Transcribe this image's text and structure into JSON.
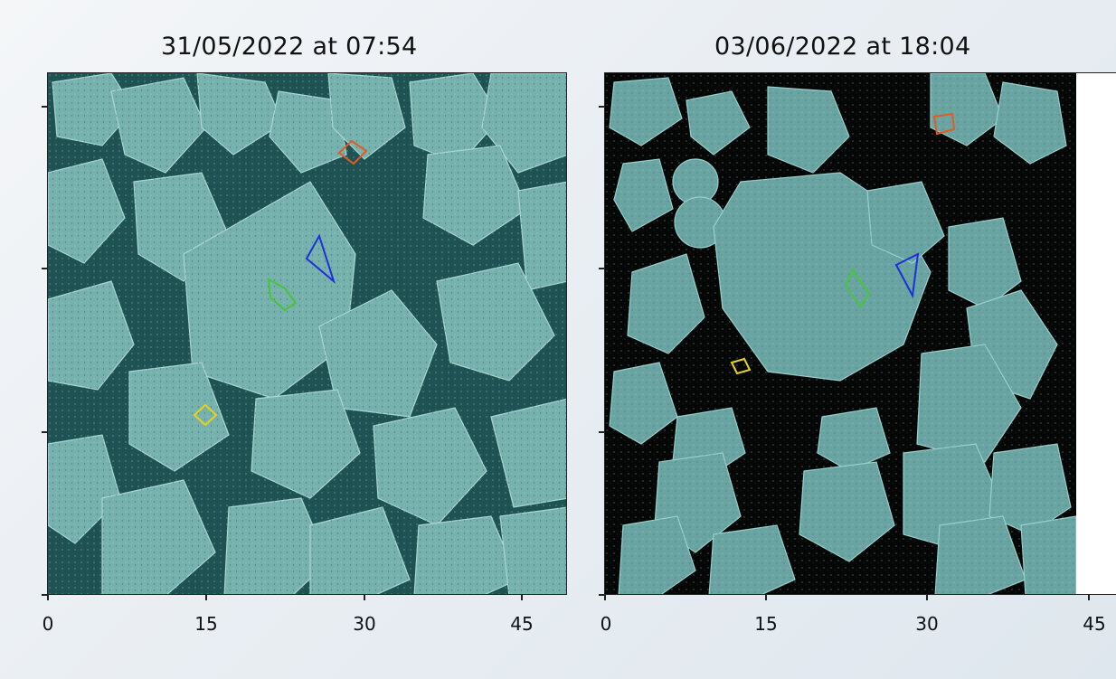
{
  "panels": [
    {
      "title": "31/05/2022 at 07:54",
      "xticks": [
        "0",
        "15",
        "30",
        "45"
      ],
      "water_color": "#1f5353",
      "ice_color": "#7fb8b6"
    },
    {
      "title": "03/06/2022 at 18:04",
      "xticks": [
        "0",
        "15",
        "30",
        "45"
      ],
      "water_color": "#050706",
      "ice_color": "#6fa9a7"
    }
  ],
  "markers": [
    {
      "shape": "diamond",
      "color": "#e35b1e",
      "icon": "orange-diamond-marker"
    },
    {
      "shape": "triangle",
      "color": "#1d2fd6",
      "icon": "blue-triangle-marker"
    },
    {
      "shape": "parallelogram",
      "color": "#49c43a",
      "icon": "green-polygon-marker"
    },
    {
      "shape": "diamond",
      "color": "#e6d21a",
      "icon": "yellow-diamond-marker"
    }
  ]
}
